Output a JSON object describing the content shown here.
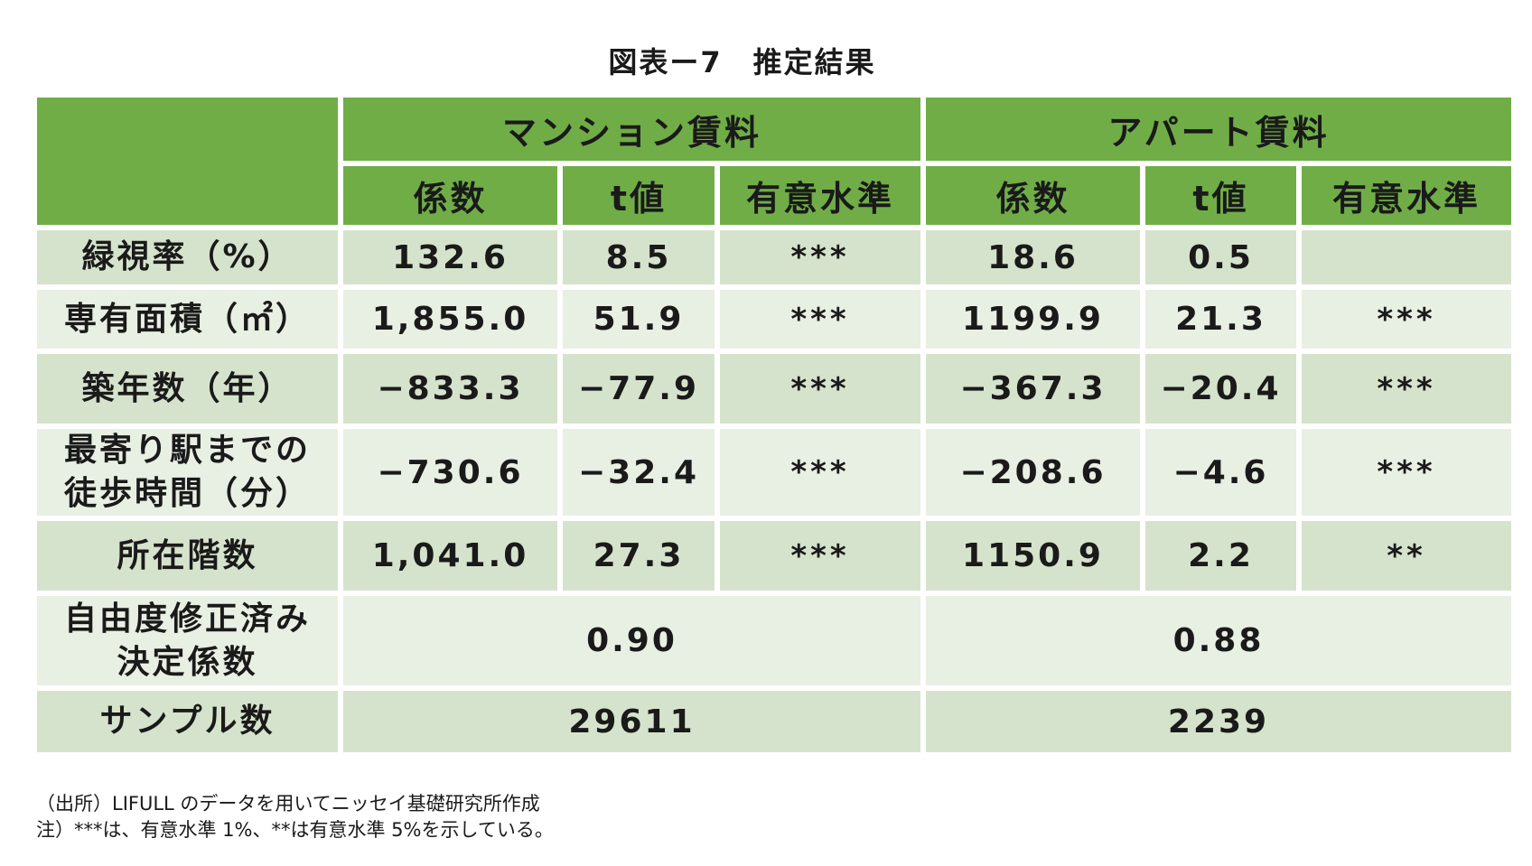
{
  "title": "図表ー7　推定結果",
  "header": {
    "group_mansion": "マンション賃料",
    "group_apart": "アパート賃料",
    "col_coef": "係数",
    "col_t": "t値",
    "col_sig": "有意水準"
  },
  "rows": [
    {
      "label": "緑視率（%）",
      "m_coef": "132.6",
      "m_t": "8.5",
      "m_sig": "***",
      "a_coef": "18.6",
      "a_t": "0.5",
      "a_sig": ""
    },
    {
      "label": "専有面積（㎡）",
      "m_coef": "1,855.0",
      "m_t": "51.9",
      "m_sig": "***",
      "a_coef": "1199.9",
      "a_t": "21.3",
      "a_sig": "***"
    },
    {
      "label": "築年数（年）",
      "m_coef": "−833.3",
      "m_t": "−77.9",
      "m_sig": "***",
      "a_coef": "−367.3",
      "a_t": "−20.4",
      "a_sig": "***"
    },
    {
      "label_line1": "最寄り駅までの",
      "label_line2": "徒歩時間（分）",
      "m_coef": "−730.6",
      "m_t": "−32.4",
      "m_sig": "***",
      "a_coef": "−208.6",
      "a_t": "−4.6",
      "a_sig": "***"
    },
    {
      "label": "所在階数",
      "m_coef": "1,041.0",
      "m_t": "27.3",
      "m_sig": "***",
      "a_coef": "1150.9",
      "a_t": "2.2",
      "a_sig": "**"
    }
  ],
  "r2": {
    "label_line1": "自由度修正済み",
    "label_line2": "決定係数",
    "mansion": "0.90",
    "apart": "0.88"
  },
  "sample": {
    "label": "サンプル数",
    "mansion": "29611",
    "apart": "2239"
  },
  "notes": {
    "source": "（出所）LIFULL のデータを用いてニッセイ基礎研究所作成",
    "note": "注）***は、有意水準 1%、**は有意水準 5%を示している。"
  },
  "colors": {
    "header_green": "#70ad47",
    "row_dark": "#d6e3cc",
    "row_light": "#e8efe3"
  }
}
